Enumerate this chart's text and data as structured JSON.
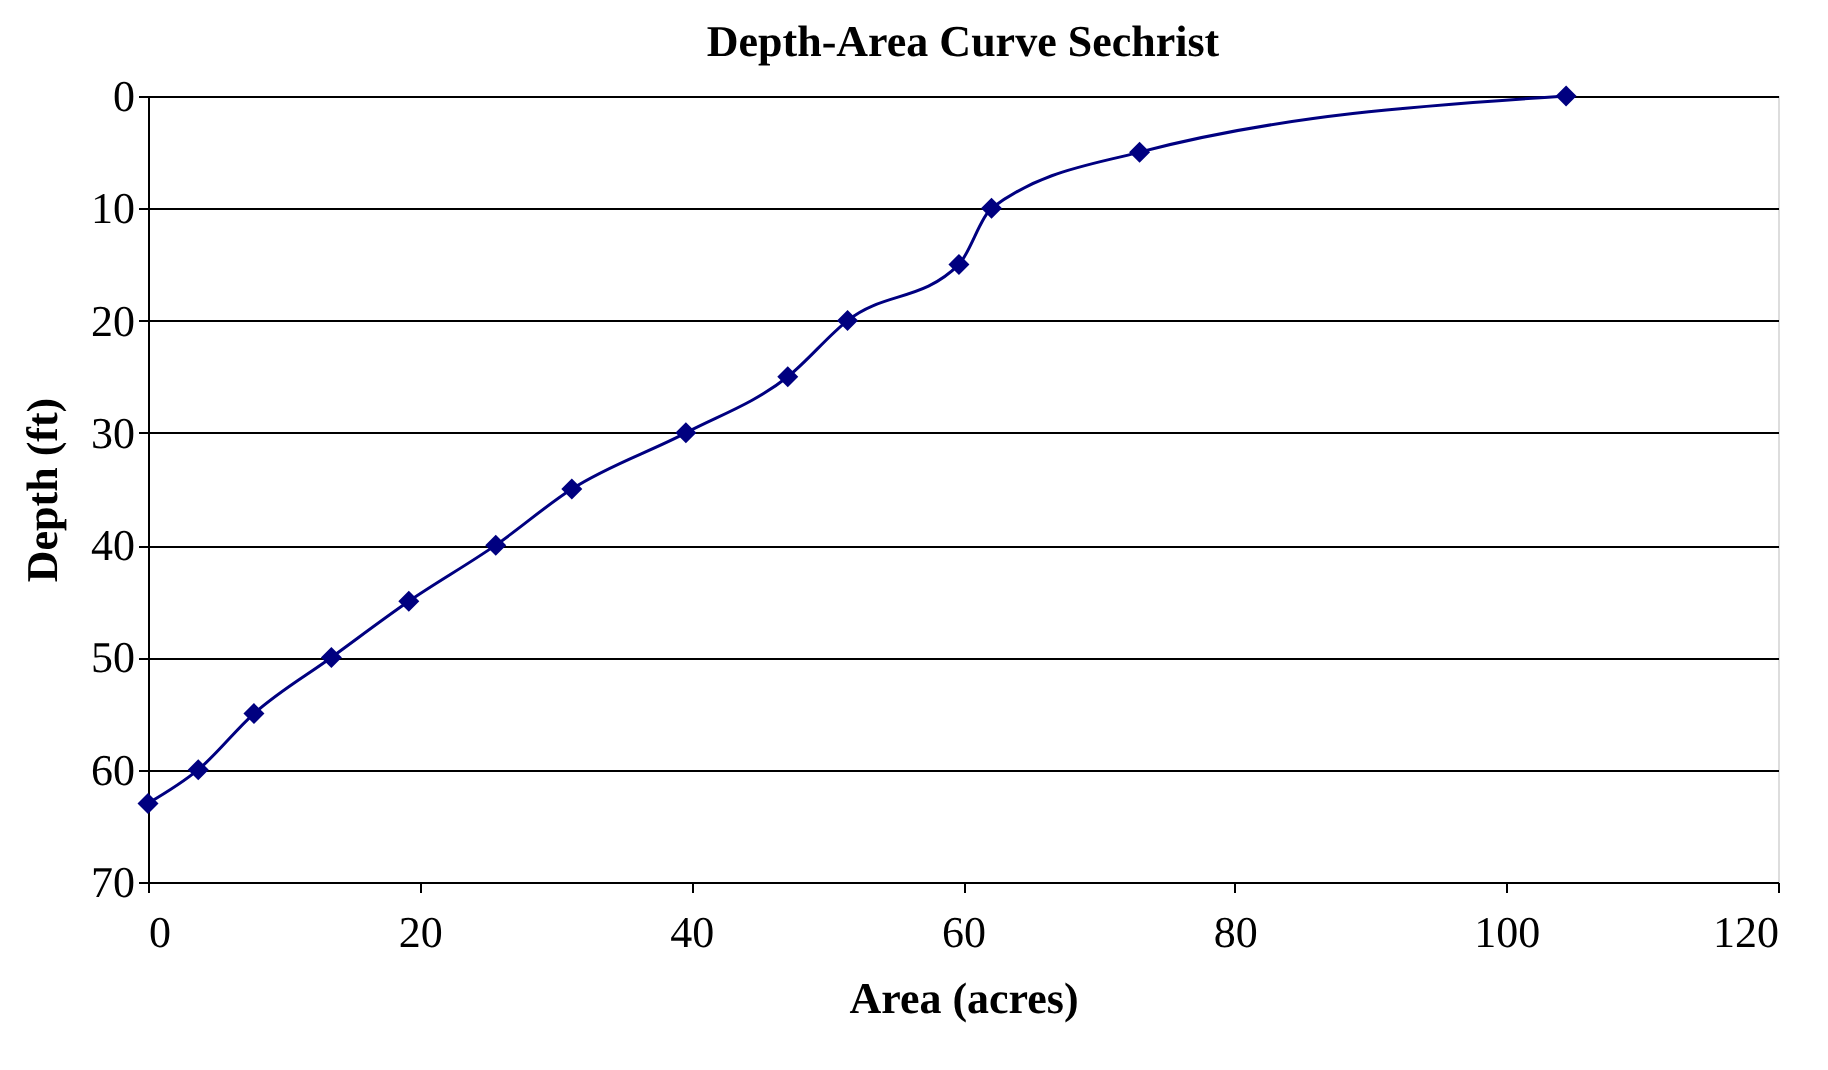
{
  "chart_data": {
    "type": "line",
    "title": "Depth-Area Curve Sechrist",
    "xlabel": "Area (acres)",
    "ylabel": "Depth (ft)",
    "x": [
      0,
      3.7,
      7.8,
      13.5,
      19.2,
      25.6,
      31.2,
      39.6,
      47.1,
      51.5,
      59.7,
      62.1,
      73,
      104.4
    ],
    "series": [
      {
        "color": "#000080",
        "values": [
          63,
          60,
          55,
          50,
          45,
          40,
          35,
          30,
          25,
          20,
          15,
          10,
          5,
          0
        ]
      }
    ],
    "xlim": [
      0,
      120
    ],
    "xticks": [
      0,
      20,
      40,
      60,
      80,
      100,
      120
    ],
    "ylim": [
      70,
      0
    ],
    "yticks": [
      0,
      10,
      20,
      30,
      40,
      50,
      60,
      70
    ],
    "grid": "y",
    "marker": "diamond",
    "line_style": "solid"
  }
}
